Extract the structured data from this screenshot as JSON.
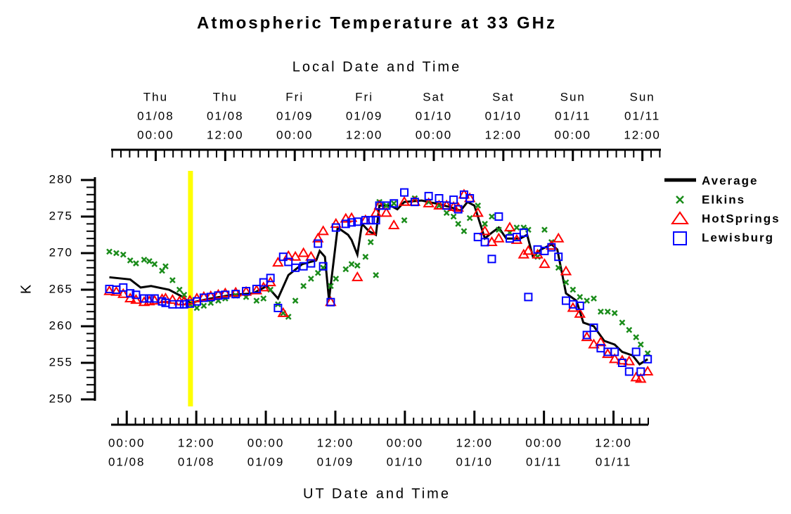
{
  "chart_data": {
    "type": "line",
    "title": "Atmospheric Temperature at 33 GHz",
    "x2label": "Local Date and Time",
    "xlabel": "UT Date and Time",
    "ylabel": "K",
    "xlim": [
      -2.7,
      90
    ],
    "x2lim": [
      -7.7,
      87.2
    ],
    "ylim": [
      250,
      280
    ],
    "yticks": [
      250,
      255,
      260,
      265,
      270,
      275,
      280
    ],
    "yminor_step": 1,
    "xminor_step": 1.5,
    "xticks": [
      {
        "value": 0,
        "label": "00:00",
        "date": "01/08"
      },
      {
        "value": 12,
        "label": "12:00",
        "date": "01/08"
      },
      {
        "value": 24,
        "label": "00:00",
        "date": "01/09"
      },
      {
        "value": 36,
        "label": "12:00",
        "date": "01/09"
      },
      {
        "value": 48,
        "label": "00:00",
        "date": "01/10"
      },
      {
        "value": 60,
        "label": "12:00",
        "date": "01/10"
      },
      {
        "value": 72,
        "label": "00:00",
        "date": "01/11"
      },
      {
        "value": 84,
        "label": "12:00",
        "date": "01/11"
      }
    ],
    "x2ticks": [
      {
        "value": 0,
        "day": "Thu",
        "date": "01/08",
        "label": "00:00"
      },
      {
        "value": 12,
        "day": "Thu",
        "date": "01/08",
        "label": "12:00"
      },
      {
        "value": 24,
        "day": "Fri",
        "date": "01/09",
        "label": "00:00"
      },
      {
        "value": 36,
        "day": "Fri",
        "date": "01/09",
        "label": "12:00"
      },
      {
        "value": 48,
        "day": "Sat",
        "date": "01/10",
        "label": "00:00"
      },
      {
        "value": 60,
        "day": "Sat",
        "date": "01/10",
        "label": "12:00"
      },
      {
        "value": 72,
        "day": "Sun",
        "date": "01/11",
        "label": "00:00"
      },
      {
        "value": 84,
        "day": "Sun",
        "date": "01/11",
        "label": "12:00"
      }
    ],
    "highlight": {
      "x": 11,
      "color": "#ffff00"
    },
    "legend": "upper right",
    "x": [
      -3.0,
      -1.8,
      -0.6,
      0.6,
      1.6,
      3.0,
      3.9,
      4.8,
      6.1,
      6.7,
      7.9,
      9.1,
      9.9,
      10.9,
      12.1,
      13.3,
      14.5,
      15.8,
      17.0,
      18.8,
      20.6,
      22.4,
      23.6,
      24.8,
      26.1,
      27.0,
      27.9,
      29.1,
      30.5,
      31.8,
      33.0,
      33.9,
      35.2,
      36.1,
      37.8,
      38.8,
      39.8,
      41.2,
      42.1,
      43.0,
      43.6,
      44.8,
      46.1,
      47.9,
      49.7,
      52.1,
      53.9,
      55.2,
      56.4,
      57.2,
      58.2,
      59.2,
      60.6,
      61.8,
      63.0,
      64.2,
      66.1,
      67.3,
      68.5,
      69.3,
      70.9,
      72.1,
      73.3,
      74.5,
      75.8,
      77.0,
      78.2,
      79.4,
      80.6,
      81.8,
      83.0,
      84.2,
      85.5,
      86.7,
      87.9,
      88.7,
      89.9
    ],
    "series": [
      {
        "name": "Average",
        "color": "#000000",
        "marker": "line",
        "x": [
          -3.0,
          0.6,
          2.4,
          4.2,
          7.3,
          9.7,
          10.9,
          14.5,
          18.2,
          21.8,
          24.2,
          26.1,
          27.9,
          30.3,
          32.7,
          33.3,
          34.2,
          34.9,
          36.4,
          38.2,
          38.8,
          39.8,
          40.6,
          41.8,
          43.0,
          43.6,
          45.5,
          46.7,
          47.9,
          50.9,
          53.3,
          55.8,
          57.6,
          58.8,
          60.0,
          61.8,
          63.0,
          64.2,
          65.5,
          67.9,
          69.1,
          70.1,
          71.5,
          73.3,
          74.3,
          75.8,
          77.6,
          78.8,
          80.6,
          82.4,
          84.2,
          85.5,
          87.3,
          88.5,
          89.9
        ],
        "values": [
          266.7,
          266.4,
          265.3,
          265.5,
          265.0,
          264.0,
          263.2,
          263.8,
          264.3,
          264.5,
          265.5,
          263.8,
          267.0,
          268.5,
          269.0,
          270.3,
          269.5,
          263.6,
          273.5,
          272.5,
          271.8,
          269.8,
          274.0,
          273.0,
          272.5,
          276.5,
          276.5,
          276.0,
          277.0,
          277.2,
          276.8,
          276.3,
          275.8,
          277.0,
          276.5,
          272.0,
          272.8,
          273.5,
          272.0,
          272.0,
          272.5,
          269.5,
          270.5,
          271.2,
          270.5,
          264.5,
          263.5,
          260.5,
          260.0,
          258.0,
          257.5,
          256.5,
          256.0,
          254.8,
          255.5
        ]
      },
      {
        "name": "Elkins",
        "color": "#1a8c1a",
        "marker": "x",
        "values": [
          270.2,
          270.0,
          269.8,
          269.0,
          268.6,
          269.1,
          268.9,
          268.5,
          267.6,
          268.2,
          266.3,
          265.0,
          264.3,
          263.0,
          262.5,
          262.8,
          263.2,
          263.5,
          263.8,
          264.2,
          264.0,
          263.5,
          263.8,
          265.0,
          263.0,
          261.8,
          261.3,
          263.5,
          265.5,
          266.5,
          267.3,
          268.0,
          265.5,
          266.5,
          267.8,
          268.5,
          268.3,
          269.5,
          271.5,
          267.0,
          277.0,
          276.5,
          276.8,
          274.5,
          277.5,
          277.0,
          276.5,
          275.5,
          275.0,
          274.0,
          273.0,
          274.8,
          276.5,
          274.0,
          275.0,
          273.2,
          272.8,
          273.5,
          273.5,
          273.2,
          269.5,
          273.2,
          271.5,
          268.0,
          266.0,
          265.0,
          264.0,
          263.5,
          263.8,
          262.0,
          262.0,
          261.8,
          260.5,
          259.5,
          258.5,
          257.5,
          256.3
        ]
      },
      {
        "name": "HotSprings",
        "color": "#ff0000",
        "marker": "triangle",
        "values": [
          264.8,
          264.7,
          264.4,
          263.8,
          263.6,
          263.3,
          263.4,
          263.5,
          263.7,
          263.8,
          263.6,
          263.4,
          263.4,
          263.5,
          263.8,
          264.0,
          264.1,
          264.3,
          264.5,
          264.6,
          264.7,
          264.9,
          265.3,
          266.0,
          268.7,
          261.8,
          269.6,
          269.5,
          270.0,
          269.5,
          272.0,
          273.0,
          263.3,
          274.0,
          274.7,
          274.8,
          266.7,
          274.5,
          273.0,
          275.5,
          276.5,
          275.5,
          273.8,
          277.0,
          277.0,
          276.8,
          276.5,
          276.5,
          276.3,
          276.2,
          278.0,
          277.5,
          275.5,
          273.0,
          271.5,
          272.0,
          273.5,
          271.8,
          269.8,
          270.3,
          269.8,
          268.5,
          271.0,
          272.0,
          267.5,
          262.5,
          261.7,
          258.5,
          257.5,
          257.8,
          256.2,
          255.5,
          255.3,
          255.2,
          253.0,
          252.8,
          253.8
        ]
      },
      {
        "name": "Lewisburg",
        "color": "#0000ff",
        "marker": "square",
        "values": [
          265.1,
          265.0,
          265.3,
          264.5,
          264.3,
          263.8,
          263.8,
          263.8,
          263.4,
          263.2,
          263.0,
          263.0,
          263.0,
          263.1,
          263.4,
          263.9,
          264.0,
          264.2,
          264.3,
          264.4,
          264.8,
          265.1,
          266.0,
          266.6,
          262.5,
          269.5,
          268.8,
          268.0,
          268.2,
          268.6,
          271.3,
          268.2,
          263.3,
          273.5,
          274.0,
          274.2,
          274.3,
          274.5,
          274.5,
          274.5,
          276.5,
          276.5,
          276.8,
          278.3,
          277.0,
          277.8,
          277.5,
          276.5,
          277.3,
          276.0,
          278.0,
          277.5,
          272.2,
          271.5,
          269.2,
          275.0,
          272.0,
          272.2,
          272.8,
          264.0,
          270.5,
          270.3,
          270.8,
          269.5,
          263.5,
          263.0,
          262.8,
          258.8,
          259.8,
          257.0,
          256.5,
          256.5,
          255.0,
          253.8,
          256.5,
          253.8,
          255.5
        ]
      }
    ]
  }
}
